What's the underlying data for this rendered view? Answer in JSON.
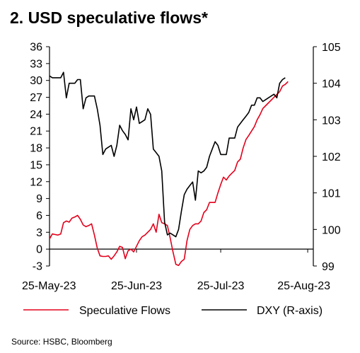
{
  "chart_data": {
    "type": "line",
    "title": "2. USD speculative flows*",
    "x_tick_labels": [
      "25-May-23",
      "25-Jun-23",
      "25-Jul-23",
      "25-Aug-23"
    ],
    "x_tick_days": [
      0,
      31,
      61,
      92
    ],
    "x_range_days": [
      0,
      94
    ],
    "left_axis": {
      "ticks": [
        -3,
        0,
        3,
        6,
        9,
        12,
        15,
        18,
        21,
        24,
        27,
        30,
        33,
        36
      ],
      "range": [
        -3,
        36
      ]
    },
    "right_axis": {
      "ticks": [
        99,
        100,
        101,
        102,
        103,
        104,
        105
      ],
      "range": [
        99,
        105
      ]
    },
    "series": [
      {
        "name": "Speculative Flows",
        "axis": "left",
        "color": "#e3001b",
        "points": [
          [
            0,
            1.8
          ],
          [
            1,
            2.7
          ],
          [
            2,
            2.6
          ],
          [
            3,
            2.5
          ],
          [
            4,
            2.7
          ],
          [
            5,
            4.7
          ],
          [
            6,
            5.0
          ],
          [
            7,
            4.8
          ],
          [
            8,
            5.5
          ],
          [
            9,
            5.7
          ],
          [
            10,
            6.0
          ],
          [
            11,
            5.3
          ],
          [
            12,
            4.3
          ],
          [
            13,
            4.0
          ],
          [
            14,
            4.2
          ],
          [
            15,
            4.5
          ],
          [
            16,
            2.5
          ],
          [
            17,
            0.2
          ],
          [
            18,
            -1.2
          ],
          [
            19,
            -1.3
          ],
          [
            20,
            -1.3
          ],
          [
            21,
            -1.2
          ],
          [
            22,
            -1.8
          ],
          [
            23,
            -1.2
          ],
          [
            24,
            -0.5
          ],
          [
            25,
            0.5
          ],
          [
            26,
            0.3
          ],
          [
            27,
            -1.7
          ],
          [
            28,
            -0.3
          ],
          [
            29,
            0.0
          ],
          [
            30,
            -0.5
          ],
          [
            31,
            0.5
          ],
          [
            32,
            1.5
          ],
          [
            33,
            2.2
          ],
          [
            34,
            2.5
          ],
          [
            35,
            3.0
          ],
          [
            36,
            3.5
          ],
          [
            37,
            4.5
          ],
          [
            38,
            3.0
          ],
          [
            39,
            6.2
          ],
          [
            40,
            4.7
          ],
          [
            41,
            4.5
          ],
          [
            42,
            4.2
          ],
          [
            43,
            2.0
          ],
          [
            44,
            -0.5
          ],
          [
            45,
            -2.7
          ],
          [
            46,
            -2.9
          ],
          [
            47,
            -2.2
          ],
          [
            48,
            -1.8
          ],
          [
            49,
            1.5
          ],
          [
            50,
            3.5
          ],
          [
            51,
            4.2
          ],
          [
            52,
            4.5
          ],
          [
            53,
            4.5
          ],
          [
            54,
            5.0
          ],
          [
            55,
            6.5
          ],
          [
            56,
            7.0
          ],
          [
            57,
            8.3
          ],
          [
            58,
            8.3
          ],
          [
            59,
            8.3
          ],
          [
            60,
            10.0
          ],
          [
            61,
            11.5
          ],
          [
            62,
            12.8
          ],
          [
            63,
            12.3
          ],
          [
            64,
            13.0
          ],
          [
            65,
            13.5
          ],
          [
            66,
            14.0
          ],
          [
            67,
            15.5
          ],
          [
            68,
            16.0
          ],
          [
            69,
            18.0
          ],
          [
            70,
            19.5
          ],
          [
            71,
            20.2
          ],
          [
            72,
            21.0
          ],
          [
            73,
            21.8
          ],
          [
            74,
            23.0
          ],
          [
            75,
            23.9
          ],
          [
            76,
            25.0
          ],
          [
            77,
            25.5
          ],
          [
            78,
            26.0
          ],
          [
            79,
            26.5
          ],
          [
            80,
            27.0
          ],
          [
            81,
            27.5
          ],
          [
            82,
            28.0
          ],
          [
            83,
            29.0
          ],
          [
            84,
            29.3
          ],
          [
            85,
            29.8
          ]
        ]
      },
      {
        "name": "DXY (R-axis)",
        "axis": "right",
        "color": "#000000",
        "points": [
          [
            0,
            104.2
          ],
          [
            1,
            104.15
          ],
          [
            2,
            104.15
          ],
          [
            3,
            104.15
          ],
          [
            4,
            104.15
          ],
          [
            5,
            104.3
          ],
          [
            6,
            103.6
          ],
          [
            7,
            104.0
          ],
          [
            8,
            104.0
          ],
          [
            9,
            104.0
          ],
          [
            10,
            104.1
          ],
          [
            11,
            104.1
          ],
          [
            12,
            103.3
          ],
          [
            13,
            103.6
          ],
          [
            14,
            103.65
          ],
          [
            15,
            103.65
          ],
          [
            16,
            103.65
          ],
          [
            17,
            103.3
          ],
          [
            18,
            102.85
          ],
          [
            19,
            102.05
          ],
          [
            20,
            102.2
          ],
          [
            21,
            102.25
          ],
          [
            22,
            102.3
          ],
          [
            23,
            102.0
          ],
          [
            24,
            102.3
          ],
          [
            25,
            102.85
          ],
          [
            26,
            102.7
          ],
          [
            27,
            102.6
          ],
          [
            28,
            102.45
          ],
          [
            29,
            103.3
          ],
          [
            30,
            103.0
          ],
          [
            31,
            103.35
          ],
          [
            32,
            102.9
          ],
          [
            33,
            102.95
          ],
          [
            34,
            103.0
          ],
          [
            35,
            103.3
          ],
          [
            36,
            103.15
          ],
          [
            37,
            102.2
          ],
          [
            38,
            102.1
          ],
          [
            39,
            102.0
          ],
          [
            40,
            101.6
          ],
          [
            41,
            100.2
          ],
          [
            42,
            99.85
          ],
          [
            43,
            99.9
          ],
          [
            44,
            99.85
          ],
          [
            45,
            99.8
          ],
          [
            46,
            100.0
          ],
          [
            47,
            100.5
          ],
          [
            48,
            100.95
          ],
          [
            49,
            101.1
          ],
          [
            50,
            101.2
          ],
          [
            51,
            101.3
          ],
          [
            52,
            100.8
          ],
          [
            53,
            101.6
          ],
          [
            54,
            101.55
          ],
          [
            55,
            101.6
          ],
          [
            56,
            101.7
          ],
          [
            57,
            102.0
          ],
          [
            58,
            102.2
          ],
          [
            59,
            102.4
          ],
          [
            60,
            102.3
          ],
          [
            61,
            102.05
          ],
          [
            62,
            102.05
          ],
          [
            63,
            102.05
          ],
          [
            64,
            102.5
          ],
          [
            65,
            102.5
          ],
          [
            66,
            102.5
          ],
          [
            67,
            102.8
          ],
          [
            68,
            102.9
          ],
          [
            69,
            103.0
          ],
          [
            70,
            103.1
          ],
          [
            71,
            103.2
          ],
          [
            72,
            103.4
          ],
          [
            73,
            103.4
          ],
          [
            74,
            103.6
          ],
          [
            75,
            103.6
          ],
          [
            76,
            103.5
          ],
          [
            77,
            103.55
          ],
          [
            78,
            103.6
          ],
          [
            79,
            103.65
          ],
          [
            80,
            103.7
          ],
          [
            81,
            103.6
          ],
          [
            82,
            104.0
          ],
          [
            83,
            104.1
          ],
          [
            84,
            104.15
          ]
        ]
      }
    ],
    "legend": {
      "placement": "bottom",
      "items": [
        "Speculative Flows",
        "DXY (R-axis)"
      ]
    },
    "grid": false,
    "source": "Source: HSBC, Bloomberg"
  }
}
